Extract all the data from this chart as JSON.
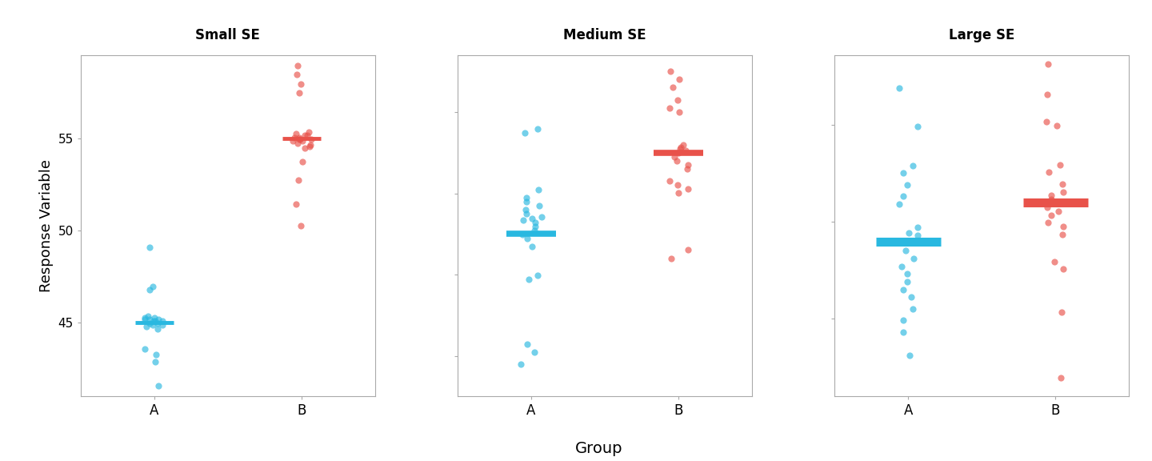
{
  "panels": [
    "Small SE",
    "Medium SE",
    "Large SE"
  ],
  "groups": [
    "A",
    "B"
  ],
  "mean_A": 45,
  "mean_B": 55,
  "color_A": "#29B8E0",
  "color_B": "#E8524A",
  "ylabel": "Response Variable",
  "xlabel": "Group",
  "panel_title_bg": "#DEDEDE",
  "panel_bg": "#FFFFFF",
  "fig_bg": "#FFFFFF",
  "border_color": "#AAAAAA",
  "small_A": [
    45.0,
    45.1,
    44.9,
    45.2,
    44.8,
    45.0,
    44.7,
    45.3,
    45.1,
    44.8,
    45.2,
    45.0,
    44.6,
    45.1,
    44.9,
    43.2,
    43.5,
    42.8,
    46.7,
    46.9,
    49.0,
    41.5
  ],
  "small_B": [
    55.0,
    55.1,
    54.9,
    55.2,
    54.8,
    55.3,
    55.1,
    54.7,
    55.0,
    55.2,
    54.6,
    55.4,
    55.0,
    54.9,
    54.5,
    53.8,
    52.8,
    51.5,
    57.5,
    58.0,
    58.5,
    59.0,
    50.3
  ],
  "medium_A": [
    45.0,
    44.5,
    45.5,
    43.5,
    46.5,
    44.0,
    46.0,
    42.5,
    47.5,
    44.8,
    45.2,
    43.0,
    47.0,
    41.5,
    48.5,
    55.5,
    56.0,
    37.5,
    38.0,
    27.0,
    28.5,
    29.5
  ],
  "medium_B": [
    55.0,
    54.5,
    55.5,
    53.5,
    56.5,
    54.0,
    56.0,
    50.5,
    51.5,
    55.8,
    56.2,
    60.5,
    61.0,
    62.0,
    63.5,
    64.5,
    65.5,
    42.5,
    43.5,
    51.0,
    52.0
  ],
  "large_A": [
    45.0,
    16.0,
    22.0,
    25.0,
    28.0,
    31.0,
    33.0,
    35.0,
    37.0,
    39.0,
    41.0,
    43.0,
    47.0,
    49.0,
    55.0,
    57.0,
    60.0,
    63.0,
    65.0,
    75.0,
    85.0,
    47.5
  ],
  "large_B": [
    55.0,
    10.0,
    27.0,
    38.0,
    40.0,
    47.0,
    49.0,
    50.0,
    52.0,
    53.0,
    54.0,
    55.0,
    56.0,
    57.0,
    58.0,
    60.0,
    63.0,
    65.0,
    75.0,
    76.0,
    83.0,
    91.0
  ],
  "mean_lw": 4,
  "mean_hw": 0.15,
  "point_size": 35,
  "point_alpha": 0.65
}
